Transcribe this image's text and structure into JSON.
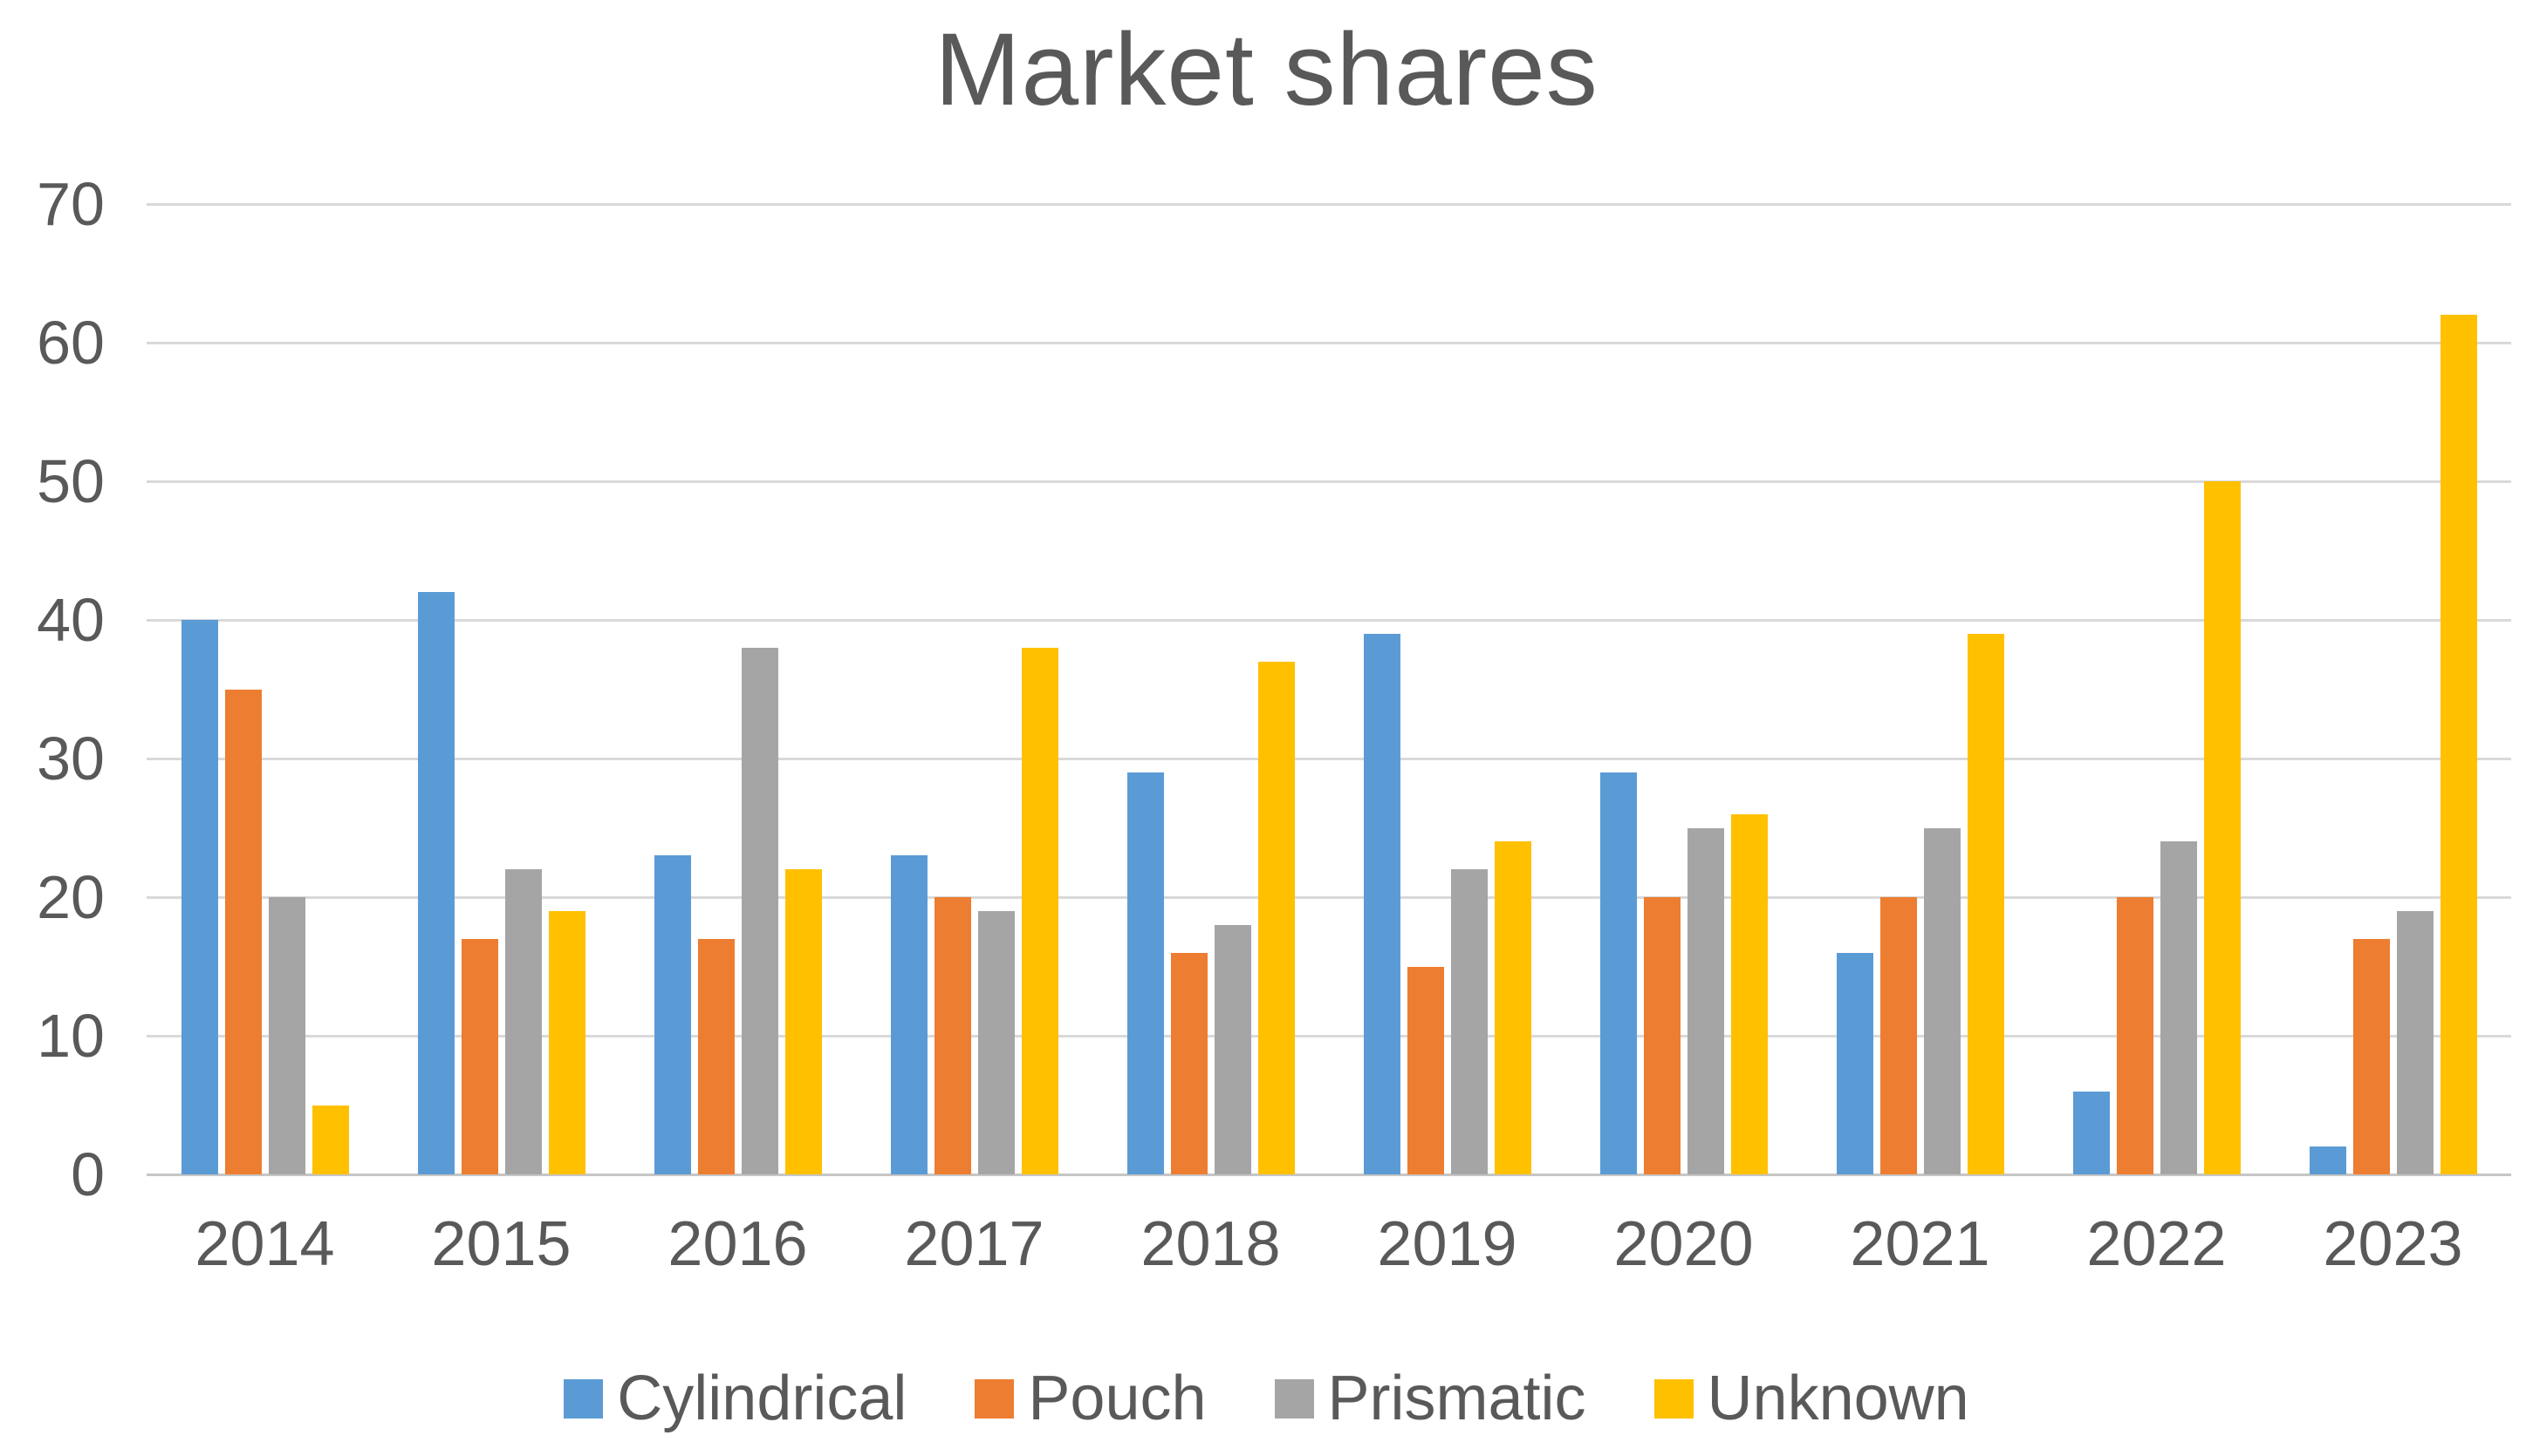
{
  "chart_data": {
    "type": "bar",
    "title": "Market shares",
    "categories": [
      "2014",
      "2015",
      "2016",
      "2017",
      "2018",
      "2019",
      "2020",
      "2021",
      "2022",
      "2023"
    ],
    "series": [
      {
        "name": "Cylindrical",
        "color": "#5B9BD5",
        "values": [
          40,
          42,
          23,
          23,
          29,
          39,
          29,
          16,
          6,
          2
        ]
      },
      {
        "name": "Pouch",
        "color": "#ED7D31",
        "values": [
          35,
          17,
          17,
          20,
          16,
          15,
          20,
          20,
          20,
          17
        ]
      },
      {
        "name": "Prismatic",
        "color": "#A5A5A5",
        "values": [
          20,
          22,
          38,
          19,
          18,
          22,
          25,
          25,
          24,
          19
        ]
      },
      {
        "name": "Unknown",
        "color": "#FFC000",
        "values": [
          5,
          19,
          22,
          38,
          37,
          24,
          26,
          39,
          50,
          62
        ]
      }
    ],
    "ylim": [
      0,
      70
    ],
    "yticks": [
      0,
      10,
      20,
      30,
      40,
      50,
      60,
      70
    ],
    "xlabel": "",
    "ylabel": "",
    "grid": true,
    "legend_position": "bottom",
    "colors": {
      "text": "#595959",
      "gridline": "#D9D9D9",
      "axis_line": "#C6C6C6",
      "background": "#FFFFFF"
    }
  }
}
